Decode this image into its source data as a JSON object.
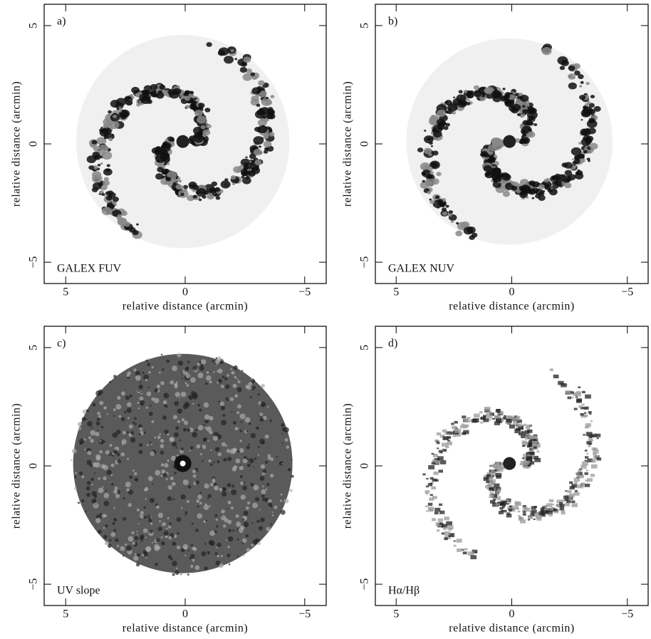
{
  "chart_data": [
    {
      "type": "image",
      "panel_label": "a)",
      "caption": "GALEX FUV",
      "xlabel": "relative distance (arcmin)",
      "ylabel": "relative distance (arcmin)",
      "xlim": [
        5.9,
        -5.9
      ],
      "ylim": [
        -5.9,
        5.9
      ],
      "xticks": [
        5,
        0,
        {
          "value": -5,
          "label": "−5"
        }
      ],
      "yticks": [
        {
          "value": -5,
          "label": "−5"
        },
        0,
        5
      ]
    },
    {
      "type": "image",
      "panel_label": "b)",
      "caption": "GALEX NUV",
      "xlabel": "relative distance (arcmin)",
      "ylabel": "relative distance (arcmin)",
      "xlim": [
        5.9,
        -5.9
      ],
      "ylim": [
        -5.9,
        5.9
      ],
      "xticks": [
        5,
        0,
        {
          "value": -5,
          "label": "−5"
        }
      ],
      "yticks": [
        {
          "value": -5,
          "label": "−5"
        },
        0,
        5
      ]
    },
    {
      "type": "image",
      "panel_label": "c)",
      "caption": "UV slope",
      "xlabel": "relative distance (arcmin)",
      "ylabel": "relative distance (arcmin)",
      "xlim": [
        5.9,
        -5.9
      ],
      "ylim": [
        -5.9,
        5.9
      ],
      "xticks": [
        5,
        0,
        {
          "value": -5,
          "label": "−5"
        }
      ],
      "yticks": [
        {
          "value": -5,
          "label": "−5"
        },
        0,
        5
      ]
    },
    {
      "type": "image",
      "panel_label": "d)",
      "caption": "Hα/Hβ",
      "xlabel": "relative distance (arcmin)",
      "ylabel": "relative distance (arcmin)",
      "xlim": [
        5.9,
        -5.9
      ],
      "ylim": [
        -5.9,
        5.9
      ],
      "xticks": [
        5,
        0,
        {
          "value": -5,
          "label": "−5"
        }
      ],
      "yticks": [
        {
          "value": -5,
          "label": "−5"
        },
        0,
        5
      ]
    }
  ]
}
